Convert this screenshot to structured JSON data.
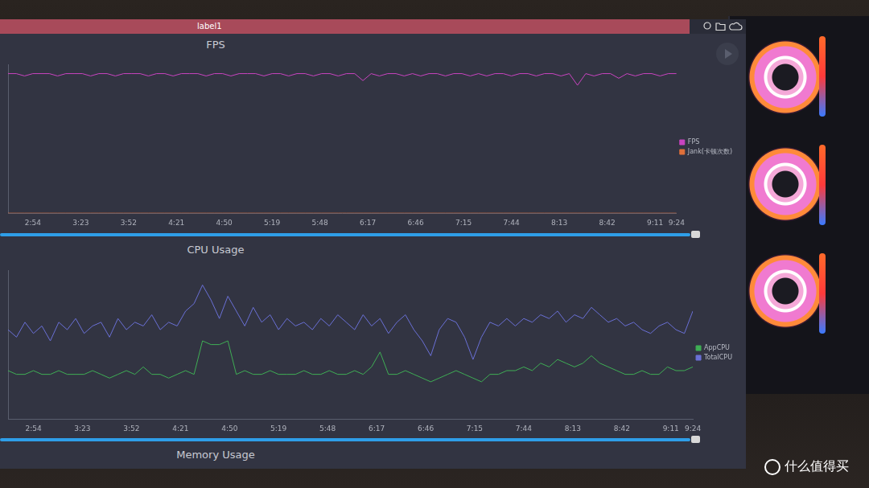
{
  "window": {
    "title": "label1"
  },
  "chart_data": [
    {
      "type": "line",
      "title": "FPS",
      "x": [
        159,
        164,
        169,
        174,
        179,
        184,
        189,
        194,
        199,
        204,
        209,
        214,
        219,
        224,
        229,
        234,
        239,
        244,
        249,
        254,
        259,
        264,
        269,
        274,
        279,
        284,
        289,
        294,
        299,
        304,
        309,
        314,
        319,
        324,
        329,
        334,
        339,
        344,
        349,
        354,
        359,
        364,
        369,
        374,
        379,
        384,
        389,
        394,
        399,
        404,
        409,
        414,
        419,
        424,
        429,
        434,
        439,
        444,
        449,
        454,
        459,
        464,
        469,
        474,
        479,
        484,
        489,
        494,
        499,
        504,
        509,
        514,
        519,
        524,
        529,
        534,
        539,
        544,
        549,
        554,
        559,
        564
      ],
      "series": [
        {
          "name": "FPS",
          "color": "#c944c0",
          "values": [
            60,
            60,
            59,
            60,
            60,
            60,
            59,
            60,
            60,
            60,
            59,
            60,
            60,
            59,
            60,
            60,
            60,
            59,
            60,
            60,
            59,
            60,
            60,
            60,
            59,
            60,
            60,
            59,
            60,
            60,
            60,
            59,
            60,
            60,
            59,
            60,
            60,
            59,
            60,
            60,
            59,
            60,
            60,
            57,
            60,
            59,
            60,
            60,
            59,
            60,
            59,
            60,
            60,
            59,
            60,
            60,
            59,
            60,
            59,
            60,
            60,
            59,
            60,
            60,
            59,
            60,
            60,
            59,
            60,
            55,
            60,
            59,
            60,
            60,
            58,
            60,
            59,
            60,
            60,
            59,
            60,
            60
          ]
        },
        {
          "name": "Jank(卡顿次数)",
          "color": "#e0703a",
          "values": [
            0,
            0,
            0,
            0,
            0,
            0,
            0,
            0,
            0,
            0,
            0,
            0,
            0,
            0,
            0,
            0,
            0,
            0,
            0,
            0,
            0,
            0,
            0,
            0,
            0,
            0,
            0,
            0,
            0,
            0,
            0,
            0,
            0,
            0,
            0,
            0,
            0,
            0,
            0,
            0,
            0,
            0,
            0,
            0,
            0,
            0,
            0,
            0,
            0,
            0,
            0,
            0,
            0,
            0,
            0,
            0,
            0,
            0,
            0,
            0,
            0,
            0,
            0,
            0,
            0,
            0,
            0,
            0,
            0,
            0,
            0,
            0,
            0,
            0,
            0,
            0,
            0,
            0,
            0,
            0,
            0,
            0
          ]
        }
      ],
      "xlim": [
        159,
        564
      ],
      "xticks": [
        {
          "value": 174,
          "label": "2:54"
        },
        {
          "value": 203,
          "label": "3:23"
        },
        {
          "value": 232,
          "label": "3:52"
        },
        {
          "value": 261,
          "label": "4:21"
        },
        {
          "value": 290,
          "label": "4:50"
        },
        {
          "value": 319,
          "label": "5:19"
        },
        {
          "value": 348,
          "label": "5:48"
        },
        {
          "value": 377,
          "label": "6:17"
        },
        {
          "value": 406,
          "label": "6:46"
        },
        {
          "value": 435,
          "label": "7:15"
        },
        {
          "value": 464,
          "label": "7:44"
        },
        {
          "value": 493,
          "label": "8:13"
        },
        {
          "value": 522,
          "label": "8:42"
        },
        {
          "value": 551,
          "label": "9:11"
        },
        {
          "value": 564,
          "label": "9:24"
        }
      ],
      "ylim": [
        0,
        64
      ],
      "grid": false,
      "legend": "right",
      "tick_labels": "x"
    },
    {
      "type": "line",
      "title": "CPU Usage",
      "x": [
        159,
        164,
        169,
        174,
        179,
        184,
        189,
        194,
        199,
        204,
        209,
        214,
        219,
        224,
        229,
        234,
        239,
        244,
        249,
        254,
        259,
        264,
        269,
        274,
        279,
        284,
        289,
        294,
        299,
        304,
        309,
        314,
        319,
        324,
        329,
        334,
        339,
        344,
        349,
        354,
        359,
        364,
        369,
        374,
        379,
        384,
        389,
        394,
        399,
        404,
        409,
        414,
        419,
        424,
        429,
        434,
        439,
        444,
        449,
        454,
        459,
        464,
        469,
        474,
        479,
        484,
        489,
        494,
        499,
        504,
        509,
        514,
        519,
        524,
        529,
        534,
        539,
        544,
        549,
        554,
        559,
        564
      ],
      "series": [
        {
          "name": "AppCPU",
          "color": "#3fae55",
          "values": [
            13,
            12,
            12,
            13,
            12,
            12,
            13,
            12,
            12,
            12,
            13,
            12,
            11,
            12,
            13,
            12,
            14,
            12,
            12,
            11,
            12,
            13,
            12,
            21,
            20,
            20,
            21,
            12,
            13,
            12,
            12,
            13,
            12,
            12,
            12,
            13,
            12,
            12,
            13,
            12,
            12,
            13,
            12,
            14,
            18,
            12,
            12,
            13,
            12,
            11,
            10,
            11,
            12,
            13,
            12,
            11,
            10,
            12,
            12,
            13,
            13,
            14,
            13,
            15,
            14,
            16,
            15,
            14,
            15,
            17,
            15,
            14,
            13,
            12,
            12,
            13,
            12,
            12,
            14,
            13,
            13,
            14
          ]
        },
        {
          "name": "TotalCPU",
          "color": "#6a70d6",
          "values": [
            24,
            22,
            26,
            23,
            25,
            21,
            26,
            24,
            27,
            23,
            25,
            26,
            22,
            27,
            24,
            26,
            25,
            28,
            24,
            26,
            25,
            29,
            31,
            36,
            32,
            27,
            33,
            29,
            25,
            30,
            26,
            28,
            24,
            27,
            25,
            26,
            24,
            27,
            25,
            28,
            26,
            24,
            28,
            25,
            27,
            23,
            26,
            28,
            24,
            21,
            17,
            24,
            27,
            26,
            22,
            16,
            22,
            26,
            25,
            27,
            25,
            27,
            26,
            28,
            27,
            29,
            26,
            28,
            27,
            30,
            28,
            26,
            27,
            25,
            26,
            24,
            23,
            25,
            26,
            24,
            23,
            29
          ]
        }
      ],
      "xlim": [
        159,
        564
      ],
      "xticks": [
        {
          "value": 174,
          "label": "2:54"
        },
        {
          "value": 203,
          "label": "3:23"
        },
        {
          "value": 232,
          "label": "3:52"
        },
        {
          "value": 261,
          "label": "4:21"
        },
        {
          "value": 290,
          "label": "4:50"
        },
        {
          "value": 319,
          "label": "5:19"
        },
        {
          "value": 348,
          "label": "5:48"
        },
        {
          "value": 377,
          "label": "6:17"
        },
        {
          "value": 406,
          "label": "6:46"
        },
        {
          "value": 435,
          "label": "7:15"
        },
        {
          "value": 464,
          "label": "7:44"
        },
        {
          "value": 493,
          "label": "8:13"
        },
        {
          "value": 522,
          "label": "8:42"
        },
        {
          "value": 551,
          "label": "9:11"
        },
        {
          "value": 564,
          "label": "9:24"
        }
      ],
      "ylim": [
        0,
        40
      ],
      "grid": false,
      "legend": "right",
      "tick_labels": "x"
    }
  ],
  "next_panel": {
    "title": "Memory Usage"
  },
  "watermark": "什么值得买"
}
